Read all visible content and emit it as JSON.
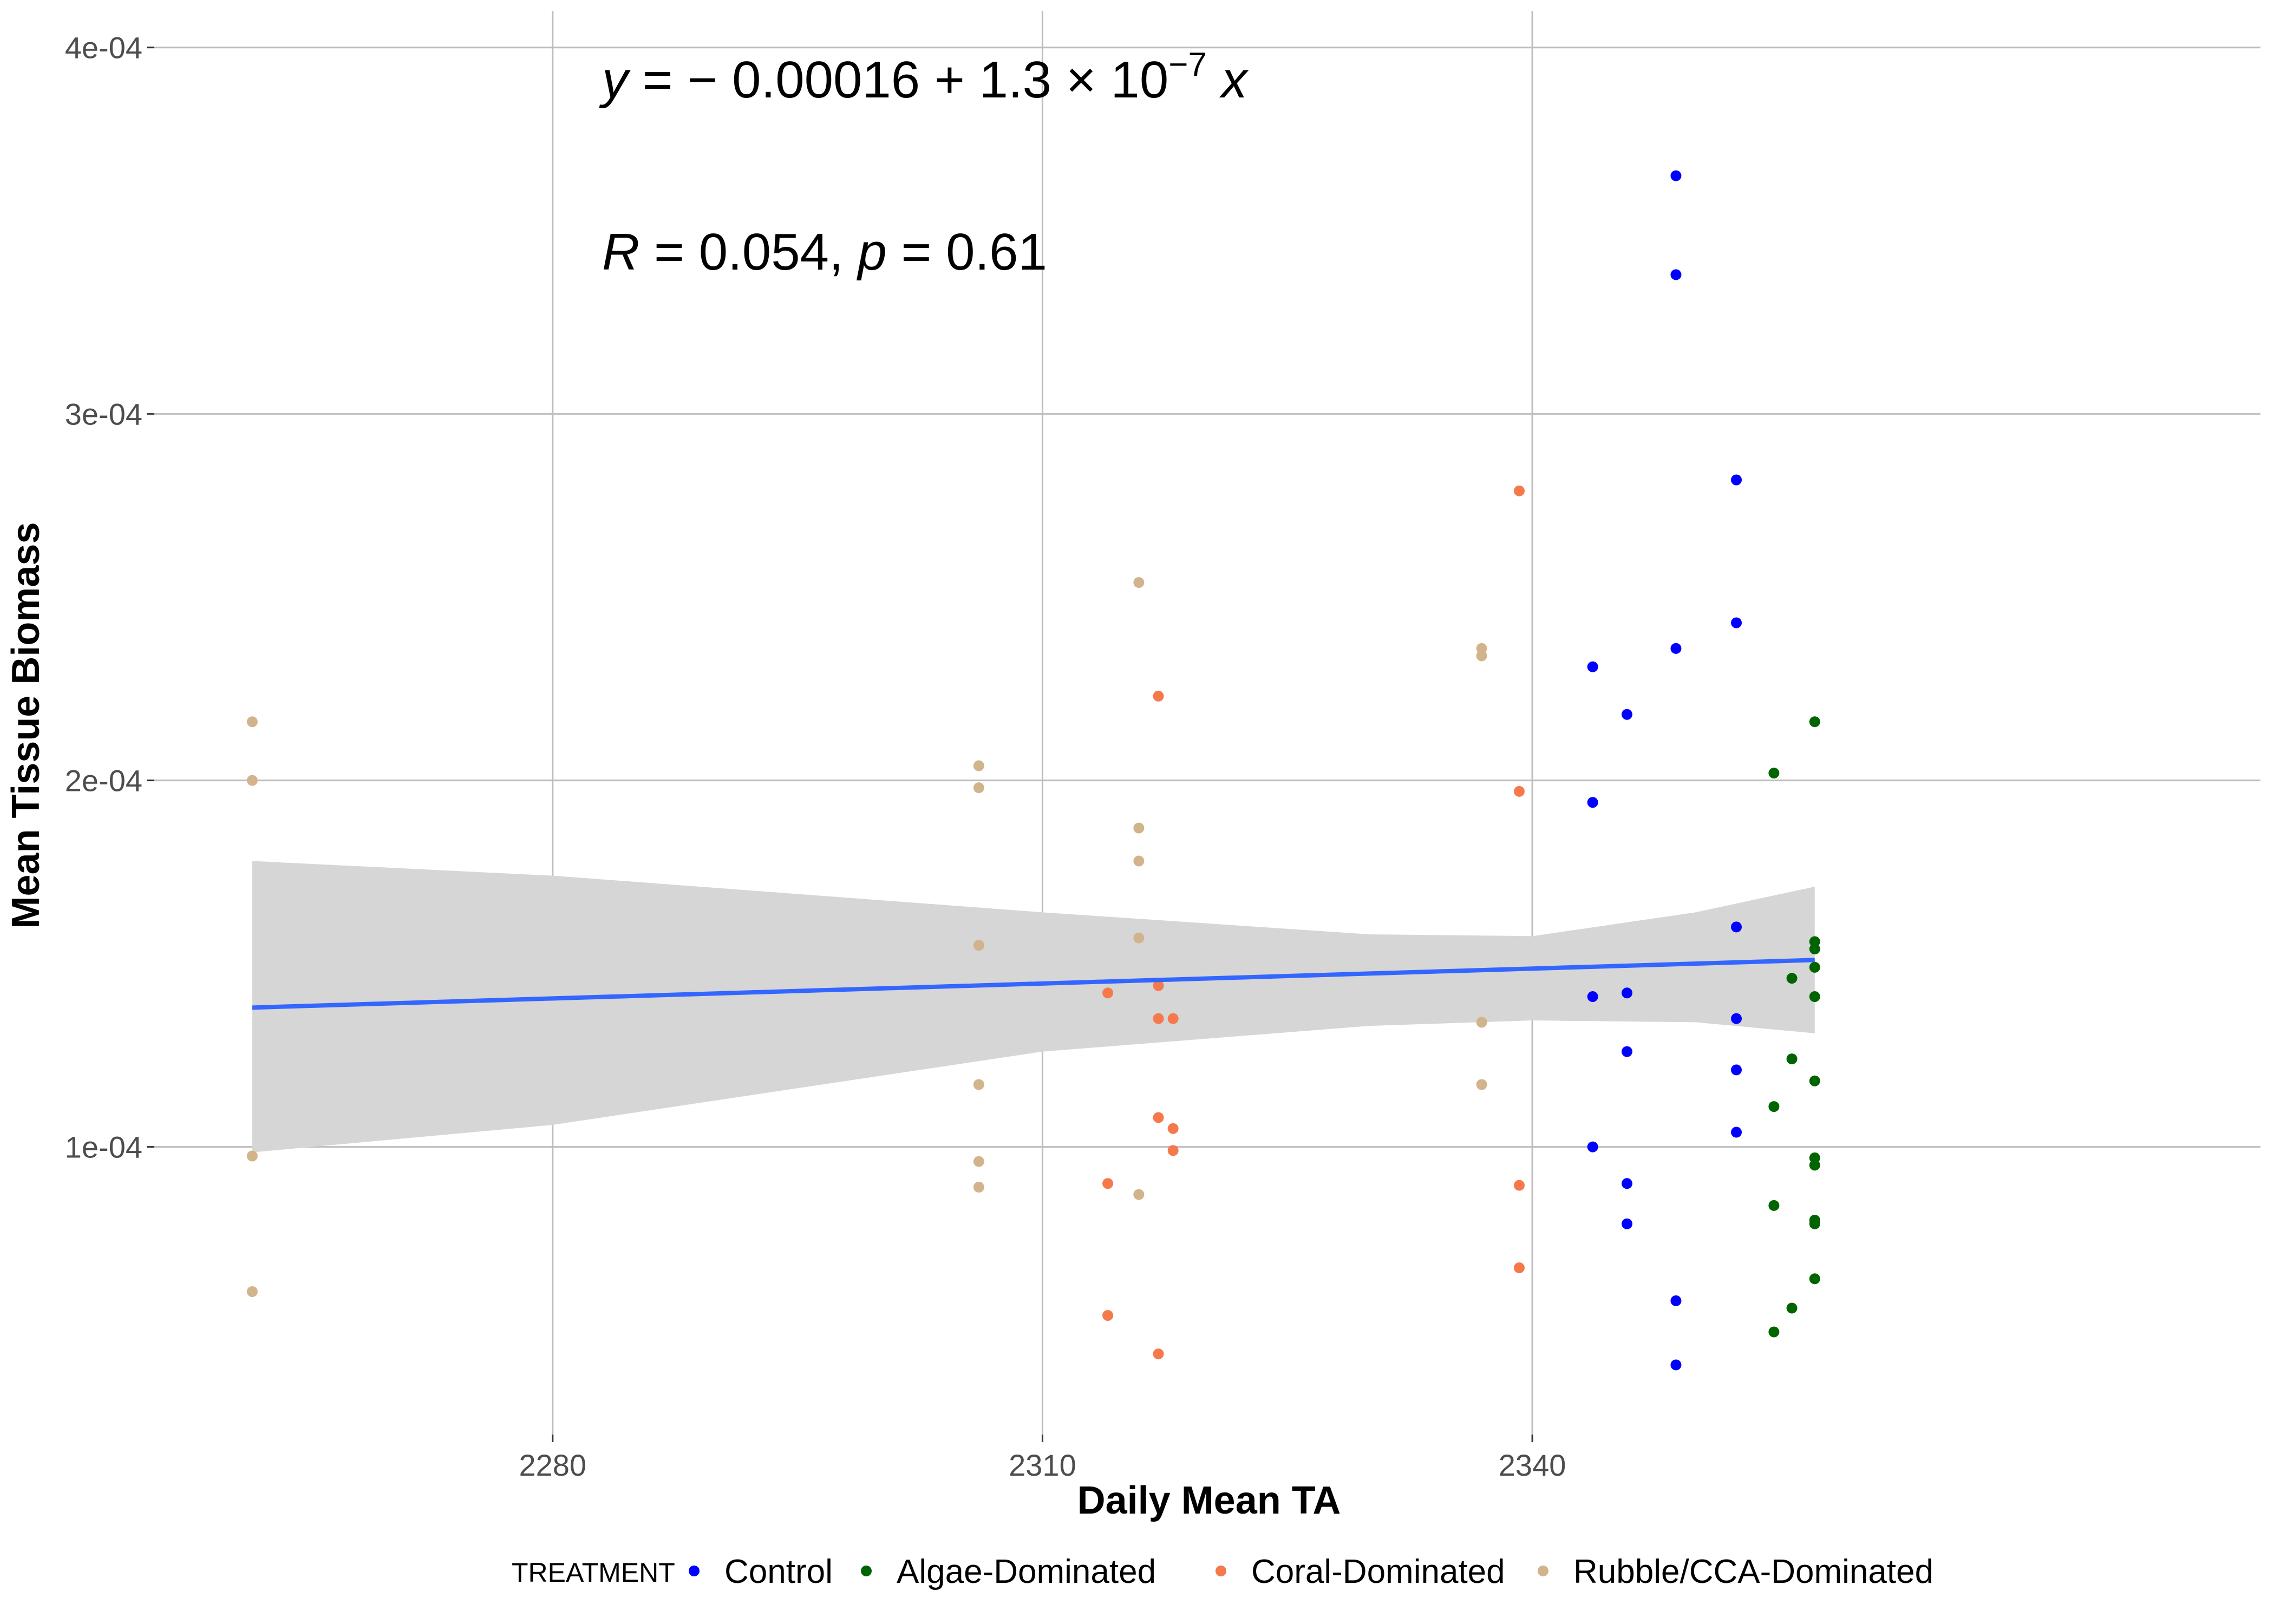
{
  "chart_data": {
    "type": "scatter",
    "xlabel": "Daily Mean TA",
    "ylabel": "Mean Tissue Biomass",
    "xlim": [
      2255.6,
      2384.6
    ],
    "ylim": [
      2.15e-05,
      0.00041
    ],
    "x_ticks": [
      2280,
      2310,
      2340
    ],
    "x_tick_labels": [
      "2280",
      "2310",
      "2340"
    ],
    "y_ticks": [
      0.0001,
      0.0002,
      0.0003,
      0.0004
    ],
    "y_tick_labels": [
      "1e-04",
      "2e-04",
      "3e-04",
      "4e-04"
    ],
    "grid": true,
    "legend_position": "bottom",
    "legend_title": "TREATMENT",
    "series": [
      {
        "name": "Control",
        "color": "#0000ff",
        "points": [
          [
            2348.8,
            0.000365
          ],
          [
            2348.8,
            0.000338
          ],
          [
            2348.8,
            0.000236
          ],
          [
            2348.8,
            5.8e-05
          ],
          [
            2348.8,
            4.05e-05
          ],
          [
            2352.5,
            0.000282
          ],
          [
            2352.5,
            0.000243
          ],
          [
            2352.5,
            0.00016
          ],
          [
            2352.5,
            0.000135
          ],
          [
            2352.5,
            0.000121
          ],
          [
            2352.5,
            0.000104
          ],
          [
            2343.7,
            0.000231
          ],
          [
            2343.7,
            0.000194
          ],
          [
            2343.7,
            0.000141
          ],
          [
            2343.7,
            0.0001
          ],
          [
            2345.8,
            0.000218
          ],
          [
            2345.8,
            0.000142
          ],
          [
            2345.8,
            0.000126
          ],
          [
            2345.8,
            9e-05
          ],
          [
            2345.8,
            7.9e-05
          ]
        ]
      },
      {
        "name": "Algae-Dominated",
        "color": "#006400",
        "points": [
          [
            2357.3,
            0.000216
          ],
          [
            2357.3,
            0.000156
          ],
          [
            2357.3,
            0.000154
          ],
          [
            2357.3,
            0.000149
          ],
          [
            2357.3,
            0.000141
          ],
          [
            2357.3,
            0.000118
          ],
          [
            2357.3,
            9.7e-05
          ],
          [
            2357.3,
            9.5e-05
          ],
          [
            2357.3,
            8e-05
          ],
          [
            2357.3,
            7.9e-05
          ],
          [
            2357.3,
            6.4e-05
          ],
          [
            2354.8,
            0.000202
          ],
          [
            2354.8,
            0.000111
          ],
          [
            2354.8,
            8.4e-05
          ],
          [
            2354.8,
            4.95e-05
          ],
          [
            2355.9,
            0.000146
          ],
          [
            2355.9,
            0.000124
          ],
          [
            2355.9,
            5.6e-05
          ]
        ]
      },
      {
        "name": "Coral-Dominated",
        "color": "#f5794a",
        "points": [
          [
            2339.2,
            0.000279
          ],
          [
            2339.2,
            0.000197
          ],
          [
            2339.2,
            8.95e-05
          ],
          [
            2339.2,
            6.7e-05
          ],
          [
            2317.1,
            0.000223
          ],
          [
            2317.1,
            0.000144
          ],
          [
            2317.1,
            0.000135
          ],
          [
            2317.1,
            0.000108
          ],
          [
            2317.1,
            4.35e-05
          ],
          [
            2318.0,
            0.000135
          ],
          [
            2318.0,
            0.000105
          ],
          [
            2318.0,
            9.9e-05
          ],
          [
            2314.0,
            0.000142
          ],
          [
            2314.0,
            9e-05
          ],
          [
            2314.0,
            5.4e-05
          ]
        ]
      },
      {
        "name": "Rubble/CCA-Dominated",
        "color": "#d2b48c",
        "points": [
          [
            2261.6,
            0.000216
          ],
          [
            2261.6,
            0.0002
          ],
          [
            2261.6,
            9.75e-05
          ],
          [
            2261.6,
            6.05e-05
          ],
          [
            2306.1,
            0.000204
          ],
          [
            2306.1,
            0.000198
          ],
          [
            2306.1,
            0.000155
          ],
          [
            2306.1,
            0.000117
          ],
          [
            2306.1,
            9.6e-05
          ],
          [
            2306.1,
            8.9e-05
          ],
          [
            2315.9,
            0.000254
          ],
          [
            2315.9,
            0.000187
          ],
          [
            2315.9,
            0.000178
          ],
          [
            2315.9,
            0.000157
          ],
          [
            2315.9,
            8.7e-05
          ],
          [
            2336.9,
            0.000236
          ],
          [
            2336.9,
            0.000234
          ],
          [
            2336.9,
            0.000134
          ],
          [
            2336.9,
            0.000117
          ]
        ]
      }
    ],
    "fit": {
      "color": "#3366ff",
      "band_color": "#d6d6d6",
      "line": [
        [
          2261.6,
          0.000138
        ],
        [
          2357.3,
          0.000151
        ]
      ],
      "band": [
        [
          2261.6,
          9.85e-05,
          0.000178
        ],
        [
          2280.0,
          0.000106,
          0.000174
        ],
        [
          2310.0,
          0.000126,
          0.000164
        ],
        [
          2330.0,
          0.000133,
          0.000158
        ],
        [
          2340.0,
          0.0001345,
          0.0001575
        ],
        [
          2350.0,
          0.000134,
          0.000164
        ],
        [
          2357.3,
          0.000131,
          0.000171
        ]
      ]
    },
    "annotations": {
      "equation": "y = − 0.00016 + 1.3 × 10⁻⁷ x",
      "stats": "R = 0.054, p = 0.61"
    }
  }
}
